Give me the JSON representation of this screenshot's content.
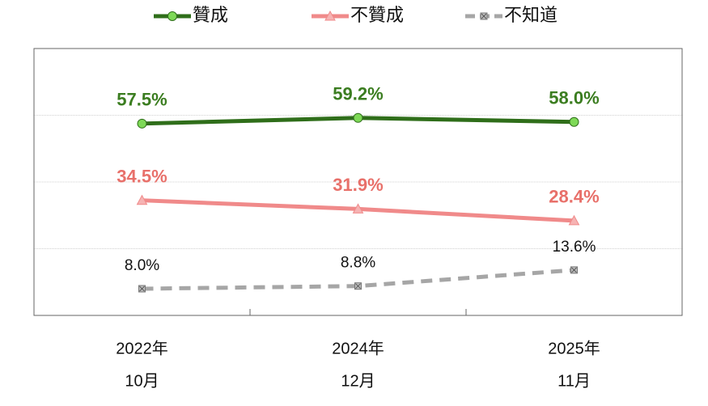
{
  "chart_data": {
    "type": "line",
    "categories": [
      [
        "2022年",
        "10月"
      ],
      [
        "2024年",
        "12月"
      ],
      [
        "2025年",
        "11月"
      ]
    ],
    "series": [
      {
        "name": "贊成",
        "color": "#2f6e1a",
        "marker": "circle",
        "marker_color": "#7ed957",
        "label_color": "#3b7d20",
        "bold": true,
        "dashed": false,
        "values": [
          57.5,
          59.2,
          58.0
        ],
        "value_labels": [
          "57.5%",
          "59.2%",
          "58.0%"
        ]
      },
      {
        "name": "不贊成",
        "color": "#f08a8a",
        "marker": "triangle",
        "marker_color": "#f6b3b3",
        "label_color": "#e8706a",
        "bold": true,
        "dashed": false,
        "values": [
          34.5,
          31.9,
          28.4
        ],
        "value_labels": [
          "34.5%",
          "31.9%",
          "28.4%"
        ]
      },
      {
        "name": "不知道",
        "color": "#a6a6a6",
        "marker": "square",
        "marker_color": "#bfbfbf",
        "label_color": "#111111",
        "bold": false,
        "dashed": true,
        "values": [
          8.0,
          8.8,
          13.6
        ],
        "value_labels": [
          "8.0%",
          "8.8%",
          "13.6%"
        ]
      }
    ],
    "ylim": [
      0,
      80
    ],
    "yticks": [
      0,
      20,
      40,
      60,
      80
    ],
    "grid": true,
    "legend": "top"
  }
}
